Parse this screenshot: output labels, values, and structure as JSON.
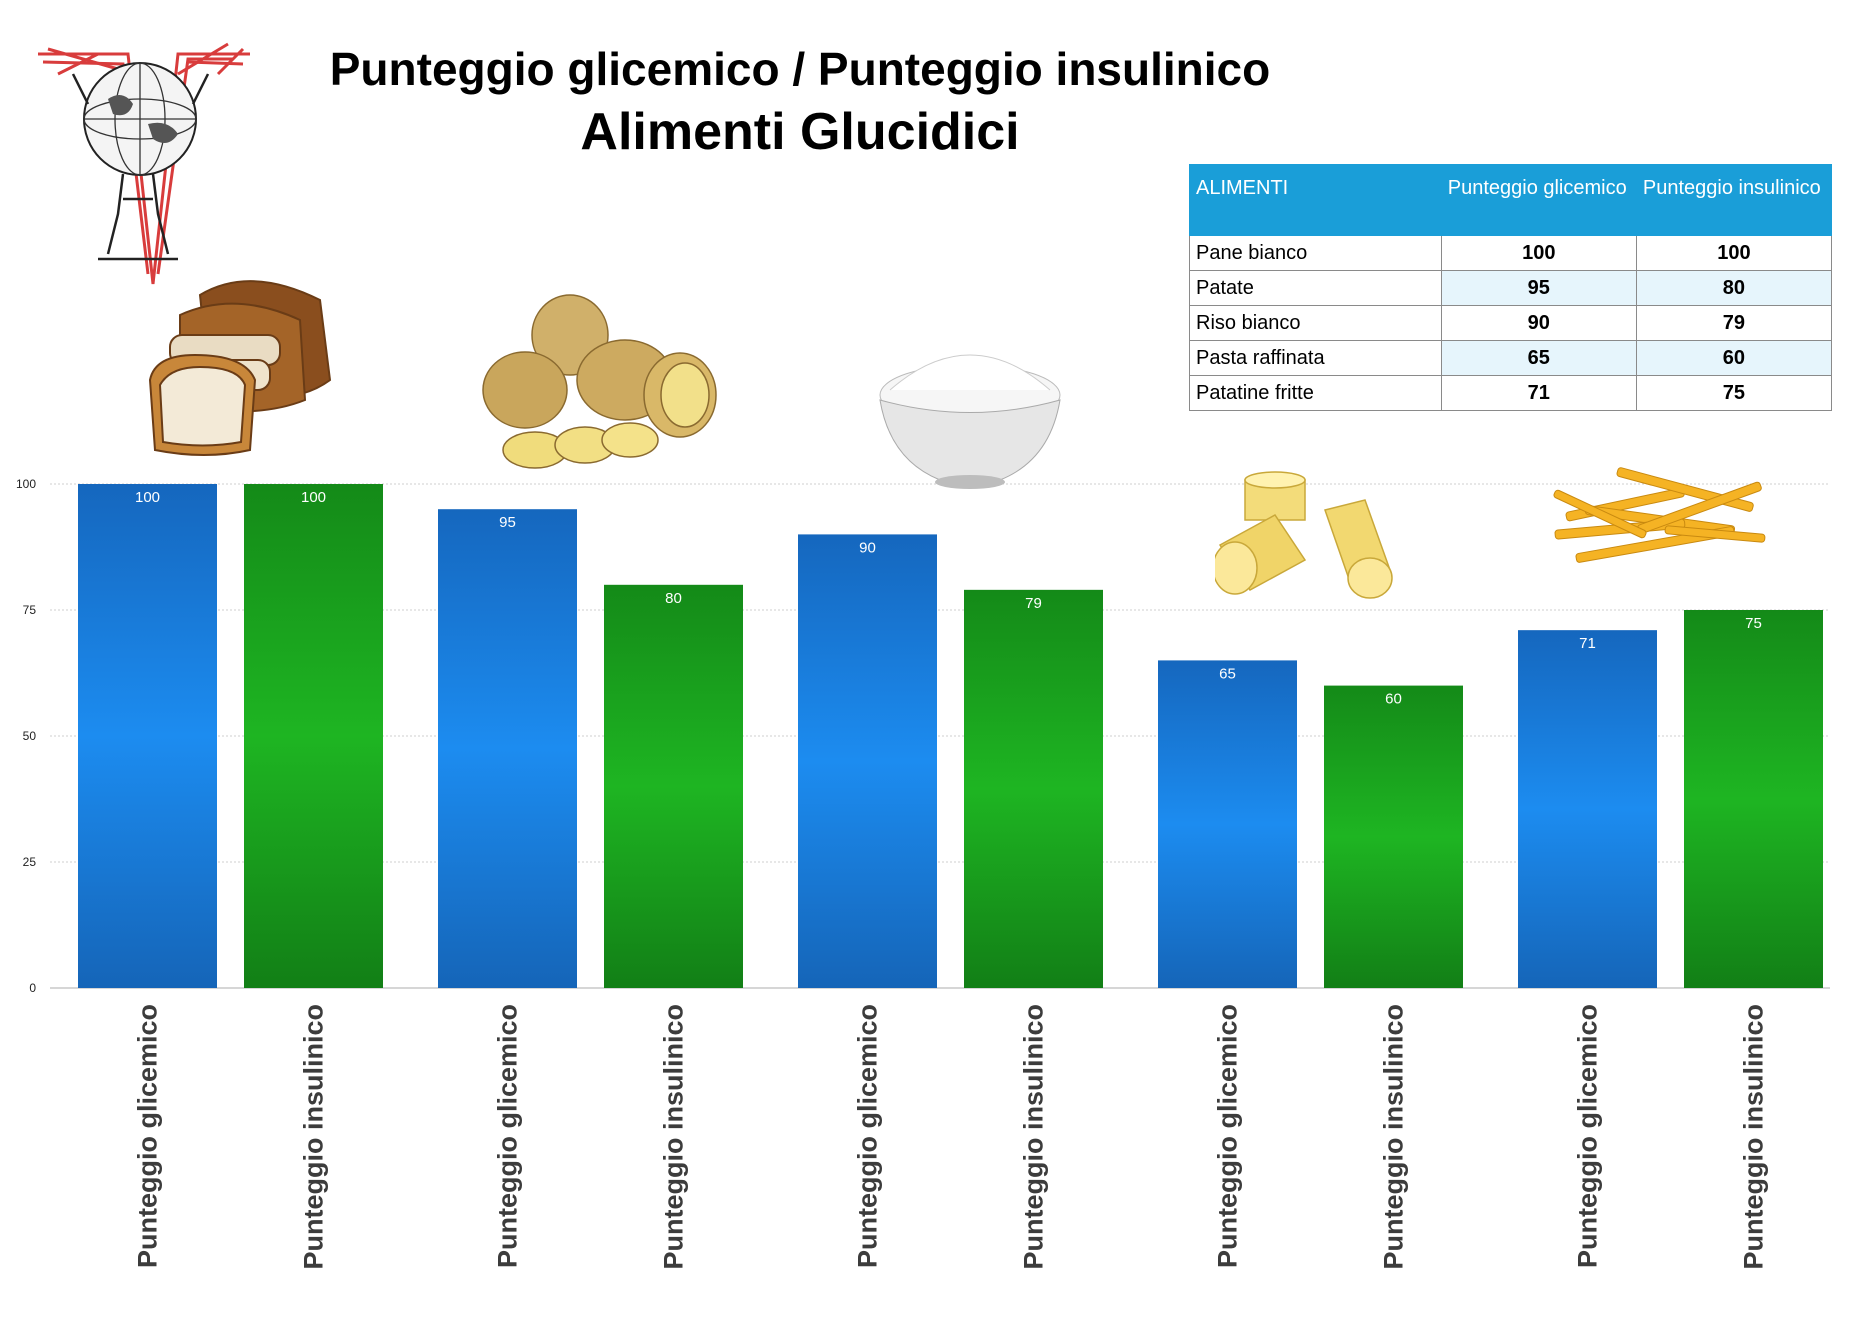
{
  "header": {
    "title": "Punteggio glicemico / Punteggio insulinico",
    "subtitle": "Alimenti Glucidici"
  },
  "colors": {
    "glicemico": "#1a82e0",
    "insulinico": "#1aa01e",
    "table_header": "#1a9ed8"
  },
  "foods": [
    {
      "name": "Pane bianco",
      "icon": "bread-icon"
    },
    {
      "name": "Patate",
      "icon": "potatoes-icon"
    },
    {
      "name": "Riso bianco",
      "icon": "rice-bowl-icon"
    },
    {
      "name": "Pasta raffinata",
      "icon": "pasta-icon"
    },
    {
      "name": "Patatine fritte",
      "icon": "fries-icon"
    }
  ],
  "logo": {
    "icon": "atlas-globe-logo-icon"
  },
  "table": {
    "headers": [
      "ALIMENTI",
      "Punteggio glicemico",
      "Punteggio insulinico"
    ],
    "rows": [
      [
        "Pane bianco",
        "100",
        "100"
      ],
      [
        "Patate",
        "95",
        "80"
      ],
      [
        "Riso bianco",
        "90",
        "79"
      ],
      [
        "Pasta raffinata",
        "65",
        "60"
      ],
      [
        "Patatine fritte",
        "71",
        "75"
      ]
    ]
  },
  "chart_data": {
    "type": "bar",
    "categories": [
      "Pane bianco",
      "Patate",
      "Riso bianco",
      "Pasta raffinata",
      "Patatine fritte"
    ],
    "bar_labels": [
      "Punteggio glicemico",
      "Punteggio insulinico"
    ],
    "series": [
      {
        "name": "Punteggio glicemico",
        "values": [
          100,
          95,
          90,
          65,
          71
        ],
        "color": "#1a82e0"
      },
      {
        "name": "Punteggio insulinico",
        "values": [
          100,
          80,
          79,
          60,
          75
        ],
        "color": "#1aa01e"
      }
    ],
    "yticks": [
      0,
      25,
      50,
      75,
      100
    ],
    "ylim": [
      0,
      100
    ],
    "grid": true,
    "title": "Punteggio glicemico / Punteggio insulinico",
    "subtitle": "Alimenti Glucidici"
  }
}
